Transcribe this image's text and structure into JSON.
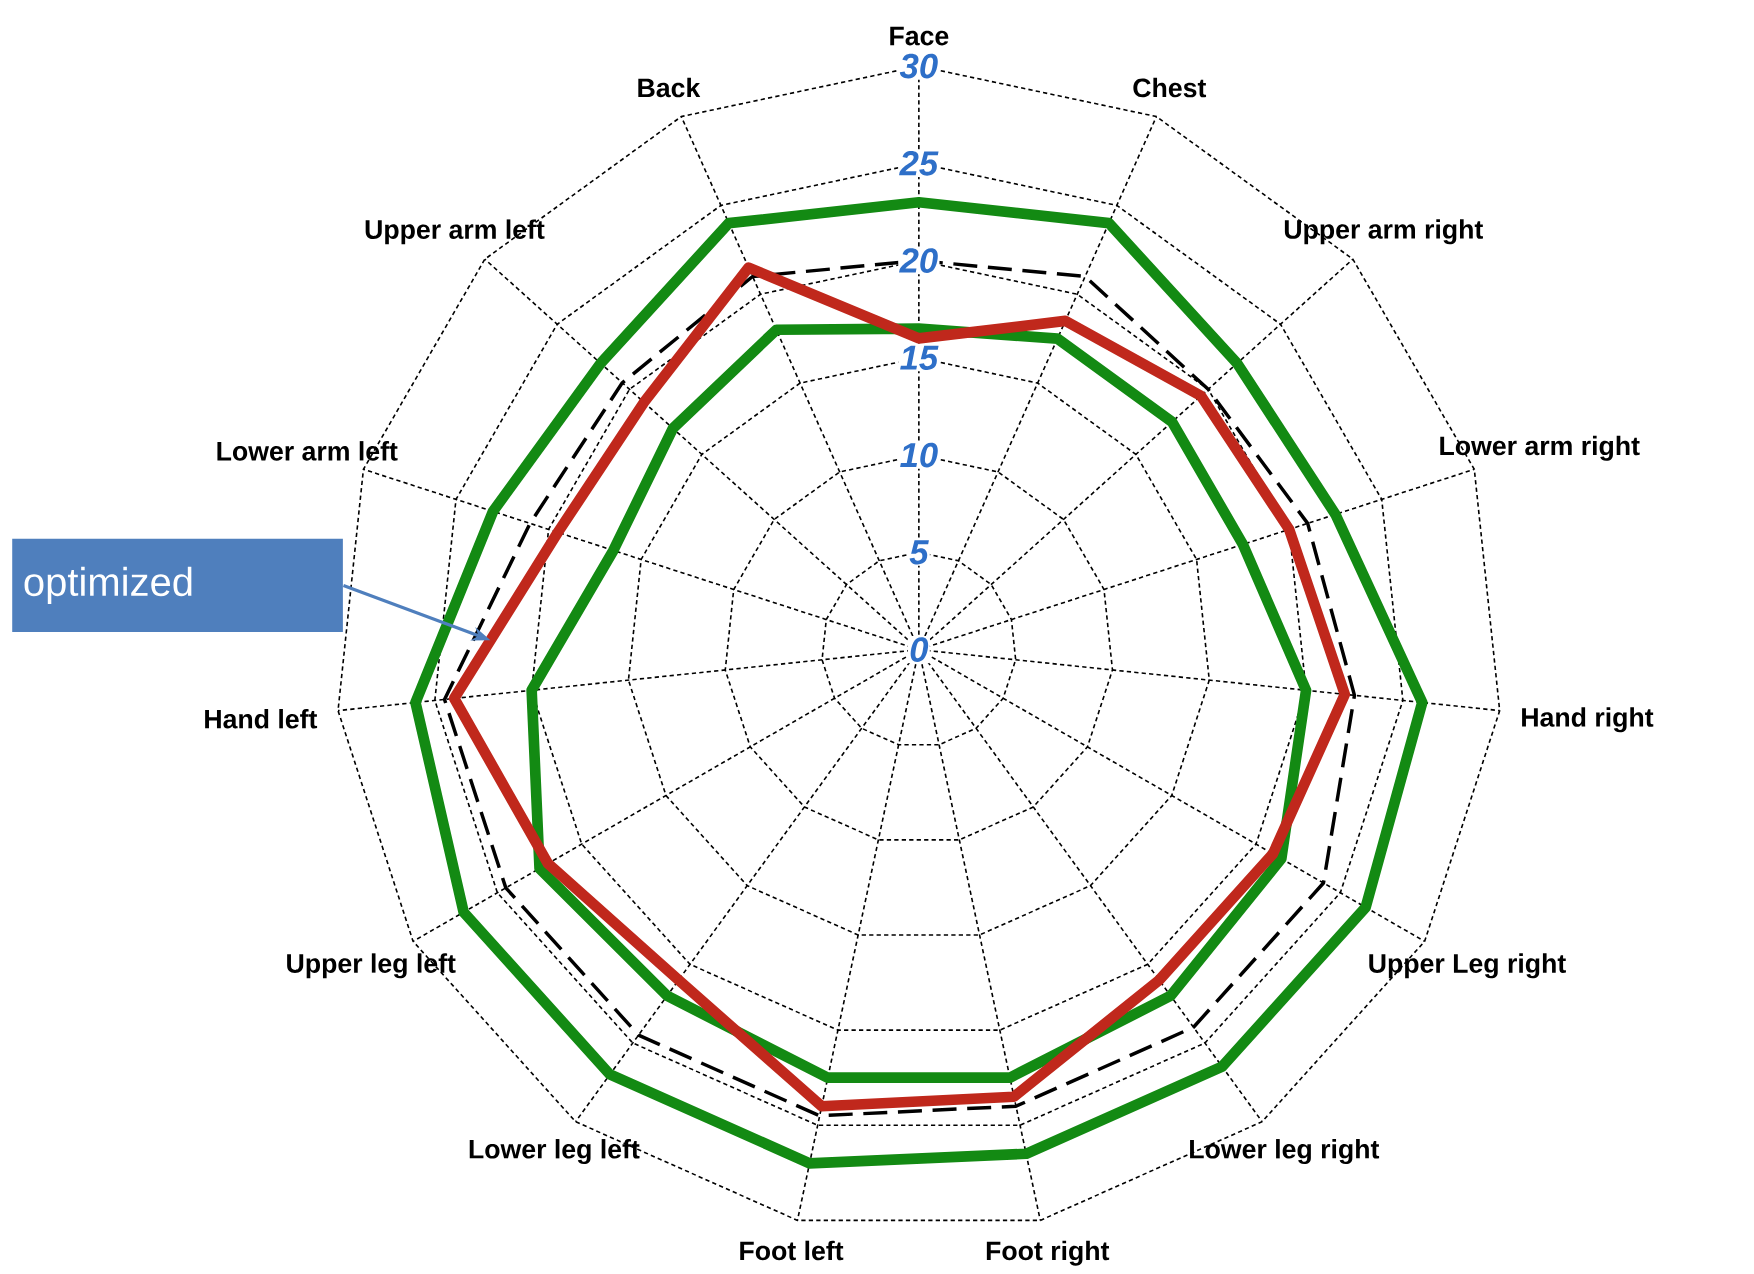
{
  "chart_data": {
    "type": "radar",
    "categories": [
      "Face",
      "Chest",
      "Upper arm right",
      "Lower arm right",
      "Hand right",
      "Upper Leg right",
      "Lower leg right",
      "Foot right",
      "Foot left",
      "Lower leg left",
      "Upper leg left",
      "Hand left",
      "Lower arm left",
      "Upper arm left",
      "Back"
    ],
    "ylim": [
      0,
      30
    ],
    "yticks": [
      0,
      5,
      10,
      15,
      20,
      25,
      30
    ],
    "grid": true,
    "series": [
      {
        "color": "#138a13",
        "values": [
          23,
          24,
          22,
          22.5,
          26,
          26.5,
          26.5,
          26.5,
          27,
          27,
          27,
          26,
          23,
          22,
          24
        ]
      },
      {
        "color": "#138a13",
        "values": [
          16.5,
          17.5,
          17.5,
          17.5,
          20,
          21.5,
          22,
          22.5,
          22.5,
          22,
          22.5,
          20,
          16.5,
          17,
          18
        ]
      },
      {
        "color": "#000000",
        "line_style": "dashed",
        "values": [
          20,
          21,
          20,
          21,
          22.5,
          24,
          24,
          24,
          24.5,
          24.5,
          24.5,
          24.5,
          21,
          20.5,
          21
        ]
      },
      {
        "name": "optimized",
        "color": "#c0281c",
        "values": [
          16,
          18.5,
          19.5,
          20,
          22,
          21,
          21,
          23.5,
          24,
          21,
          22,
          24,
          19.5,
          19,
          21.5
        ]
      }
    ]
  }
}
